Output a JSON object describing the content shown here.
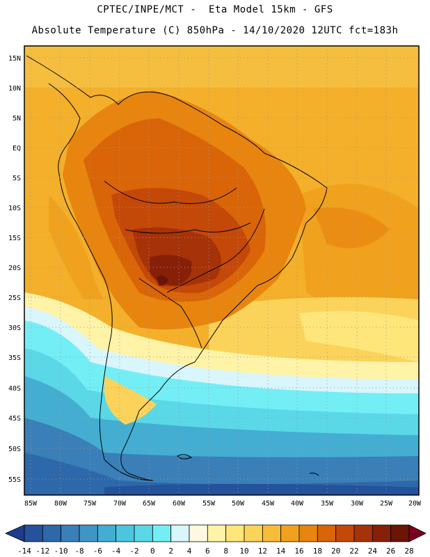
{
  "header": {
    "line1": "CPTEC/INPE/MCT -  Eta Model 15km - GFS",
    "line2": "Absolute Temperature (C) 850hPa - 14/10/2020 12UTC fct=183h"
  },
  "map": {
    "lat_labels": [
      "15N",
      "10N",
      "5N",
      "EQ",
      "5S",
      "10S",
      "15S",
      "20S",
      "25S",
      "30S",
      "35S",
      "40S",
      "45S",
      "50S",
      "55S"
    ],
    "lon_labels": [
      "85W",
      "80W",
      "75W",
      "70W",
      "65W",
      "60W",
      "55W",
      "50W",
      "45W",
      "40W",
      "35W",
      "30W",
      "25W",
      "20W"
    ]
  },
  "colorbar": {
    "labels": [
      "-14",
      "-12",
      "-10",
      "-8",
      "-6",
      "-4",
      "-2",
      "0",
      "2",
      "4",
      "6",
      "8",
      "10",
      "12",
      "14",
      "16",
      "18",
      "20",
      "22",
      "24",
      "26",
      "28"
    ],
    "colors": [
      "#1e3d8f",
      "#24529c",
      "#2d68aa",
      "#3a7fb8",
      "#3f95c4",
      "#44aed2",
      "#4ec5df",
      "#5ad8e8",
      "#74eef5",
      "#d8f6fb",
      "#fff8e0",
      "#fff3a8",
      "#ffe67a",
      "#fbd35a",
      "#f5bd3a",
      "#f0a21e",
      "#e8850e",
      "#d96508",
      "#c44808",
      "#a63208",
      "#872008",
      "#6b1408",
      "#7a0020"
    ]
  }
}
